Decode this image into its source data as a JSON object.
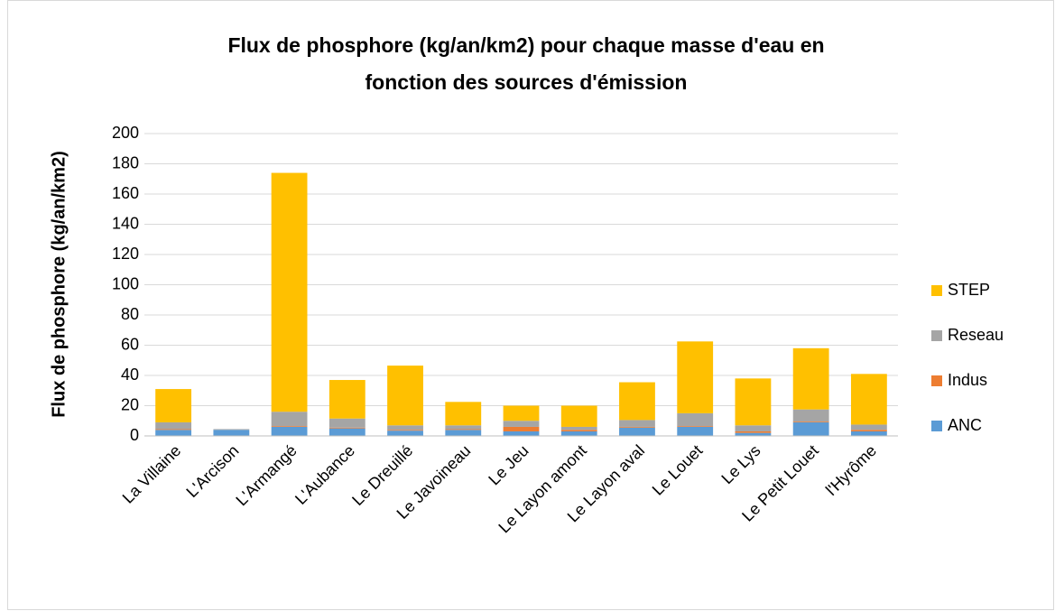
{
  "chart_data": {
    "type": "bar",
    "stacked": true,
    "title": [
      "Flux de phosphore (kg/an/km2) pour chaque masse d'eau en",
      "fonction des sources d'émission"
    ],
    "y_label": "Flux de phosphore (kg/an/km2)",
    "categories": [
      "La Villaine",
      "L'Arcison",
      "L'Armangé",
      "L'Aubance",
      "Le Dreuillé",
      "Le Javoineau",
      "Le Jeu",
      "Le Layon amont",
      "Le Layon aval",
      "Le Louet",
      "Le Lys",
      "Le Petit Louet",
      "l'Hyrôme"
    ],
    "series": [
      {
        "name": "ANC",
        "color": "#5b9bd5",
        "values": [
          4,
          4,
          6,
          5,
          3.5,
          4,
          3,
          3,
          5.5,
          6,
          2,
          9,
          3
        ]
      },
      {
        "name": "Indus",
        "color": "#ed7d31",
        "values": [
          0.5,
          0,
          0.5,
          0.5,
          0.5,
          0.5,
          3,
          1,
          0.5,
          0.5,
          1,
          0.5,
          1
        ]
      },
      {
        "name": "Reseau",
        "color": "#a5a5a5",
        "values": [
          4.5,
          0.5,
          9.5,
          6,
          3,
          2.5,
          4,
          2,
          4.5,
          8.5,
          4,
          8,
          3.5
        ]
      },
      {
        "name": "STEP",
        "color": "#ffc000",
        "values": [
          22,
          0,
          158,
          25.5,
          39.5,
          15.5,
          10,
          14,
          25,
          47.5,
          31,
          40.5,
          33.5
        ]
      }
    ],
    "ylim": [
      0,
      200
    ],
    "yticks": [
      0,
      20,
      40,
      60,
      80,
      100,
      120,
      140,
      160,
      180,
      200
    ],
    "grid": true,
    "legend": "right"
  }
}
